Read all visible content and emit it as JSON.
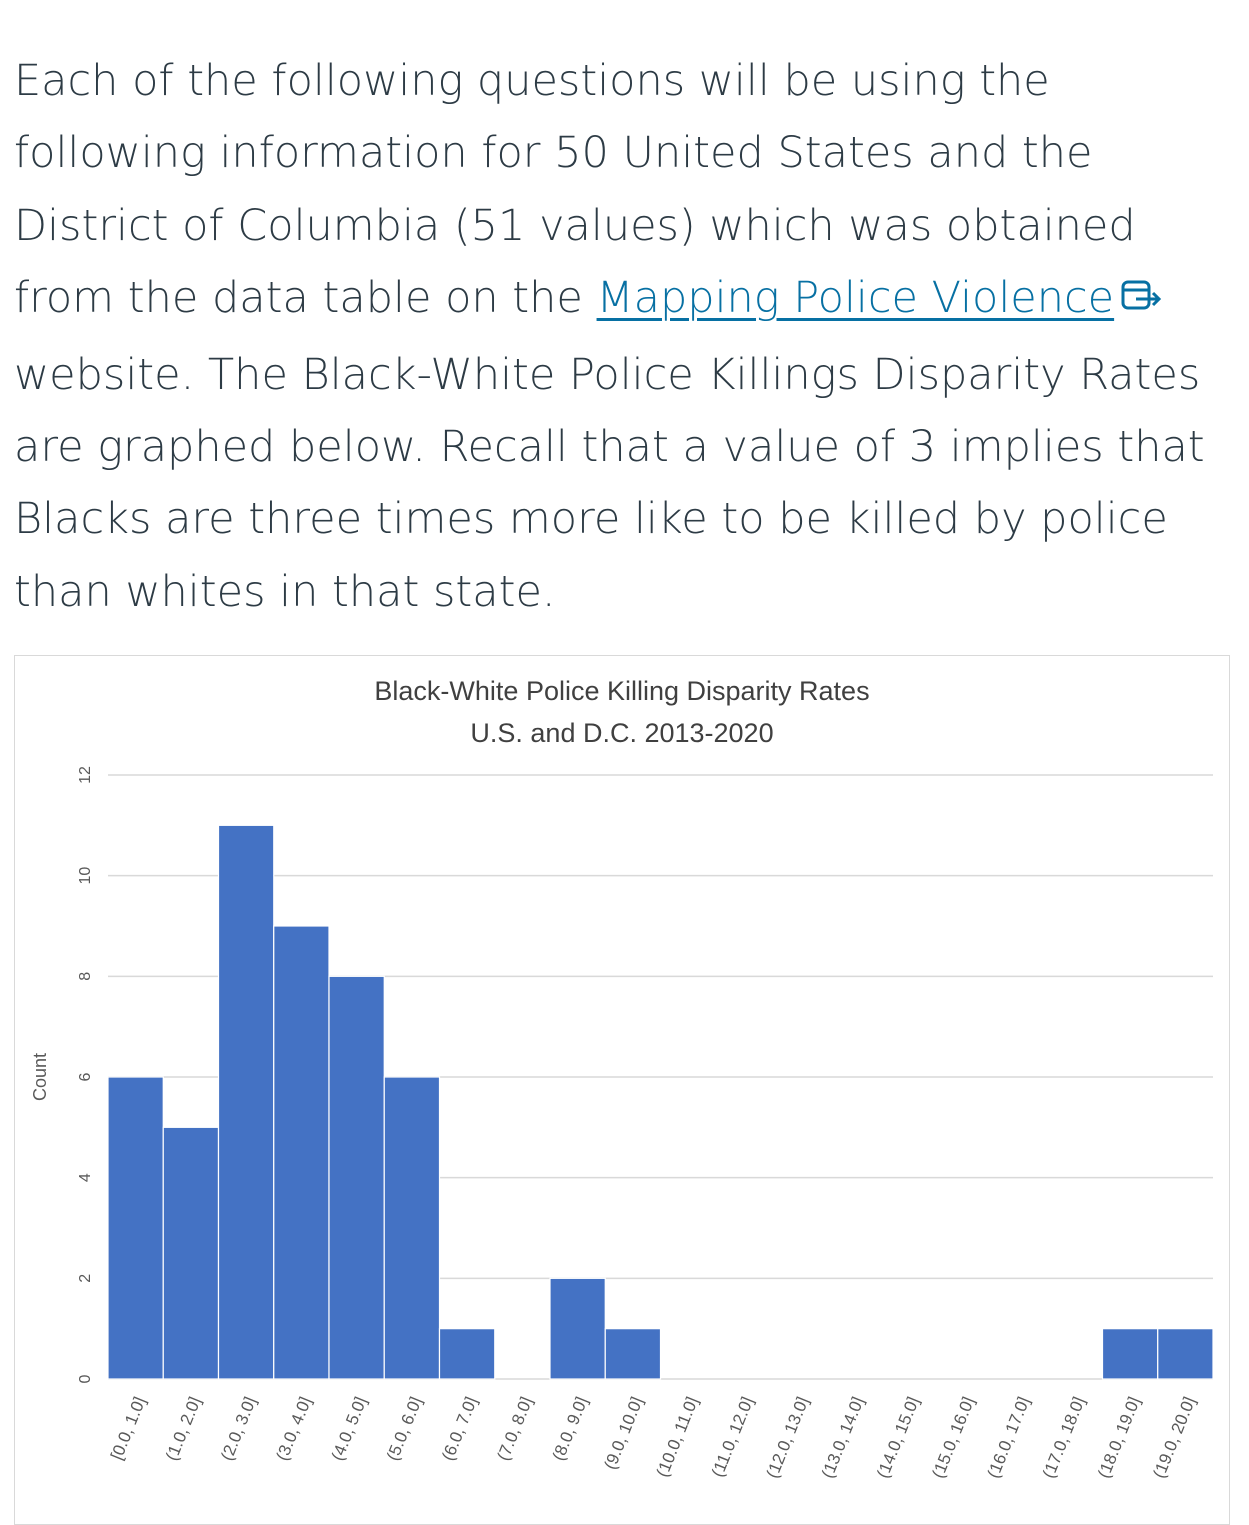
{
  "question": {
    "text_before": "Each of the following questions will be using the following information for 50 United States and the District of Columbia (51 values) which was obtained from the data table on the ",
    "link_text": "Mapping Police Violence",
    "text_after": " website.  The Black-White Police Killings Disparity Rates are graphed below.  Recall that a value of 3 implies that Blacks are three times more like to be killed by police than whites in that state."
  },
  "icons": {
    "link": "external-link-icon"
  },
  "chart_data": {
    "type": "bar",
    "title": "Black-White Police Killing Disparity Rates",
    "subtitle": "U.S. and D.C. 2013-2020",
    "xlabel": "",
    "ylabel": "Count",
    "ylim": [
      0,
      12
    ],
    "yticks": [
      0,
      2,
      4,
      6,
      8,
      10,
      12
    ],
    "grid": true,
    "bar_color": "#4472c4",
    "categories": [
      "[0.0, 1.0]",
      "(1.0, 2.0]",
      "(2.0, 3.0]",
      "(3.0, 4.0]",
      "(4.0, 5.0]",
      "(5.0, 6.0]",
      "(6.0, 7.0]",
      "(7.0, 8.0]",
      "(8.0, 9.0]",
      "(9.0, 10.0]",
      "(10.0, 11.0]",
      "(11.0, 12.0]",
      "(12.0, 13.0]",
      "(13.0, 14.0]",
      "(14.0, 15.0]",
      "(15.0, 16.0]",
      "(16.0, 17.0]",
      "(17.0, 18.0]",
      "(18.0, 19.0]",
      "(19.0, 20.0]"
    ],
    "values": [
      6,
      5,
      11,
      9,
      8,
      6,
      1,
      0,
      2,
      1,
      0,
      0,
      0,
      0,
      0,
      0,
      0,
      0,
      1,
      1
    ]
  }
}
